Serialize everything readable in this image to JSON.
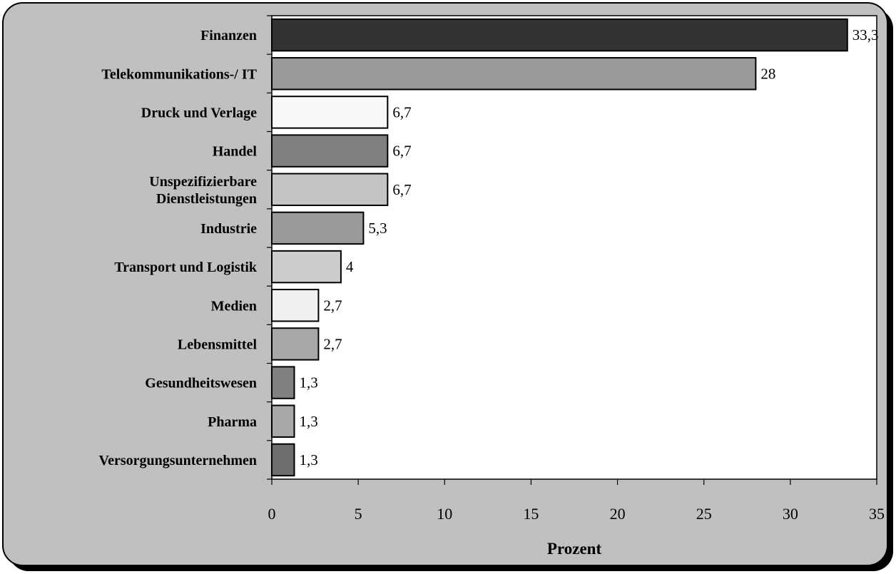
{
  "chart_data": {
    "type": "bar",
    "orientation": "horizontal",
    "title": "",
    "xlabel": "Prozent",
    "ylabel": "",
    "xlim": [
      0,
      35
    ],
    "x_ticks": [
      0,
      5,
      10,
      15,
      20,
      25,
      30,
      35
    ],
    "grid": false,
    "legend": "none",
    "categories": [
      "Finanzen",
      "Telekommunikations-/ IT",
      "Druck und Verlage",
      "Handel",
      "Unspezifizierbare Dienstleistungen",
      "Industrie",
      "Transport und Logistik",
      "Medien",
      "Lebensmittel",
      "Gesundheitswesen",
      "Pharma",
      "Versorgungsunternehmen"
    ],
    "category_lines": [
      [
        "Finanzen"
      ],
      [
        "Telekommunikations-/ IT"
      ],
      [
        "Druck und Verlage"
      ],
      [
        "Handel"
      ],
      [
        "Unspezifizierbare",
        "Dienstleistungen"
      ],
      [
        "Industrie"
      ],
      [
        "Transport und Logistik"
      ],
      [
        "Medien"
      ],
      [
        "Lebensmittel"
      ],
      [
        "Gesundheitswesen"
      ],
      [
        "Pharma"
      ],
      [
        "Versorgungsunternehmen"
      ]
    ],
    "values": [
      33.3,
      28,
      6.7,
      6.7,
      6.7,
      5.3,
      4,
      2.7,
      2.7,
      1.3,
      1.3,
      1.3
    ],
    "value_labels": [
      "33,3",
      "28",
      "6,7",
      "6,7",
      "6,7",
      "5,3",
      "4",
      "2,7",
      "2,7",
      "1,3",
      "1,3",
      "1,3"
    ],
    "bar_colors": [
      "#333333",
      "#999999",
      "#f8f8f8",
      "#808080",
      "#c4c4c4",
      "#999999",
      "#cccccc",
      "#f0f0f0",
      "#a8a8a8",
      "#808080",
      "#a8a8a8",
      "#6e6e6e"
    ],
    "frame_color": "#c0c0c0",
    "plot_background": "#ffffff"
  }
}
